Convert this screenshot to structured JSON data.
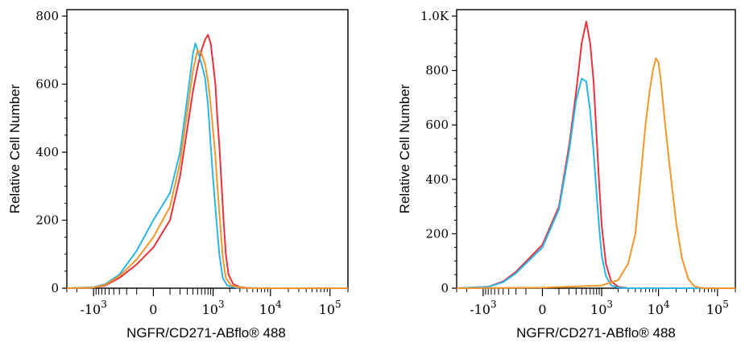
{
  "chart_data": [
    {
      "type": "line",
      "ylabel": "Relative Cell Number",
      "xlabel": "NGFR/CD271-ABflo® 488",
      "x_scale": "biexponential",
      "ylim": [
        0,
        800
      ],
      "yticks": [
        0,
        200,
        400,
        600,
        800
      ],
      "ytick_labels": [
        "0",
        "200",
        "400",
        "600",
        "800"
      ],
      "xticks": [
        -1000,
        0,
        1000,
        10000,
        100000
      ],
      "xtick_labels": [
        "-10^3",
        "0",
        "10^3",
        "10^4",
        "10^5"
      ],
      "colors": [
        "#e8323c",
        "#29b6e6",
        "#f4962a"
      ],
      "series": [
        {
          "color": "#e8323c",
          "points": [
            [
              -3000,
              0
            ],
            [
              -1000,
              2
            ],
            [
              -600,
              8
            ],
            [
              -300,
              30
            ],
            [
              -100,
              70
            ],
            [
              0,
              120
            ],
            [
              100,
              200
            ],
            [
              200,
              330
            ],
            [
              300,
              470
            ],
            [
              400,
              580
            ],
            [
              500,
              650
            ],
            [
              600,
              700
            ],
            [
              700,
              730
            ],
            [
              800,
              745
            ],
            [
              900,
              720
            ],
            [
              1000,
              660
            ],
            [
              1100,
              600
            ],
            [
              1200,
              500
            ],
            [
              1300,
              420
            ],
            [
              1400,
              330
            ],
            [
              1550,
              200
            ],
            [
              1700,
              100
            ],
            [
              1900,
              40
            ],
            [
              2300,
              12
            ],
            [
              3000,
              3
            ],
            [
              5000,
              0
            ],
            [
              200000,
              0
            ]
          ]
        },
        {
          "color": "#29b6e6",
          "points": [
            [
              -3000,
              0
            ],
            [
              -1000,
              3
            ],
            [
              -600,
              12
            ],
            [
              -300,
              40
            ],
            [
              -100,
              110
            ],
            [
              0,
              200
            ],
            [
              100,
              280
            ],
            [
              200,
              400
            ],
            [
              300,
              560
            ],
            [
              400,
              690
            ],
            [
              450,
              720
            ],
            [
              500,
              700
            ],
            [
              600,
              660
            ],
            [
              700,
              620
            ],
            [
              800,
              540
            ],
            [
              900,
              420
            ],
            [
              1000,
              320
            ],
            [
              1150,
              200
            ],
            [
              1300,
              100
            ],
            [
              1500,
              30
            ],
            [
              1800,
              8
            ],
            [
              2500,
              2
            ],
            [
              5000,
              0
            ],
            [
              200000,
              0
            ]
          ]
        },
        {
          "color": "#f4962a",
          "points": [
            [
              -3000,
              0
            ],
            [
              -1000,
              2
            ],
            [
              -600,
              10
            ],
            [
              -300,
              35
            ],
            [
              -100,
              85
            ],
            [
              0,
              150
            ],
            [
              100,
              240
            ],
            [
              200,
              370
            ],
            [
              300,
              520
            ],
            [
              400,
              640
            ],
            [
              500,
              700
            ],
            [
              600,
              690
            ],
            [
              700,
              660
            ],
            [
              800,
              610
            ],
            [
              900,
              540
            ],
            [
              1000,
              460
            ],
            [
              1100,
              390
            ],
            [
              1200,
              300
            ],
            [
              1350,
              190
            ],
            [
              1500,
              90
            ],
            [
              1700,
              30
            ],
            [
              2100,
              8
            ],
            [
              3000,
              2
            ],
            [
              5000,
              0
            ],
            [
              200000,
              0
            ]
          ]
        }
      ]
    },
    {
      "type": "line",
      "ylabel": "Relative Cell Number",
      "xlabel": "NGFR/CD271-ABflo® 488",
      "x_scale": "biexponential",
      "ylim": [
        0,
        1000
      ],
      "yticks": [
        0,
        200,
        400,
        600,
        800,
        1000
      ],
      "ytick_labels": [
        "0",
        "200",
        "400",
        "600",
        "800",
        "1.0K"
      ],
      "xticks": [
        -1000,
        0,
        1000,
        10000,
        100000
      ],
      "xtick_labels": [
        "-10^3",
        "0",
        "10^3",
        "10^4",
        "10^5"
      ],
      "colors": [
        "#e8323c",
        "#29b6e6",
        "#f4962a"
      ],
      "series": [
        {
          "color": "#e8323c",
          "points": [
            [
              -3000,
              0
            ],
            [
              -800,
              5
            ],
            [
              -400,
              25
            ],
            [
              -200,
              60
            ],
            [
              0,
              160
            ],
            [
              100,
              300
            ],
            [
              200,
              520
            ],
            [
              300,
              720
            ],
            [
              400,
              900
            ],
            [
              500,
              980
            ],
            [
              600,
              900
            ],
            [
              700,
              760
            ],
            [
              800,
              560
            ],
            [
              900,
              380
            ],
            [
              1000,
              230
            ],
            [
              1200,
              90
            ],
            [
              1500,
              25
            ],
            [
              2000,
              5
            ],
            [
              3000,
              0
            ],
            [
              200000,
              0
            ]
          ]
        },
        {
          "color": "#29b6e6",
          "points": [
            [
              -3000,
              0
            ],
            [
              -800,
              5
            ],
            [
              -400,
              22
            ],
            [
              -200,
              55
            ],
            [
              0,
              150
            ],
            [
              100,
              290
            ],
            [
              200,
              500
            ],
            [
              300,
              690
            ],
            [
              400,
              770
            ],
            [
              500,
              760
            ],
            [
              600,
              650
            ],
            [
              700,
              500
            ],
            [
              800,
              350
            ],
            [
              900,
              220
            ],
            [
              1000,
              120
            ],
            [
              1200,
              45
            ],
            [
              1500,
              10
            ],
            [
              2000,
              2
            ],
            [
              3000,
              0
            ],
            [
              200000,
              0
            ]
          ]
        },
        {
          "color": "#f4962a",
          "points": [
            [
              -3000,
              0
            ],
            [
              0,
              2
            ],
            [
              1000,
              10
            ],
            [
              2000,
              30
            ],
            [
              3000,
              90
            ],
            [
              4000,
              200
            ],
            [
              5000,
              420
            ],
            [
              6000,
              600
            ],
            [
              7000,
              720
            ],
            [
              8000,
              800
            ],
            [
              9000,
              845
            ],
            [
              10000,
              830
            ],
            [
              11000,
              760
            ],
            [
              13000,
              600
            ],
            [
              16000,
              420
            ],
            [
              20000,
              240
            ],
            [
              25000,
              110
            ],
            [
              32000,
              35
            ],
            [
              40000,
              8
            ],
            [
              50000,
              2
            ],
            [
              60000,
              0
            ],
            [
              200000,
              0
            ]
          ]
        }
      ]
    }
  ]
}
